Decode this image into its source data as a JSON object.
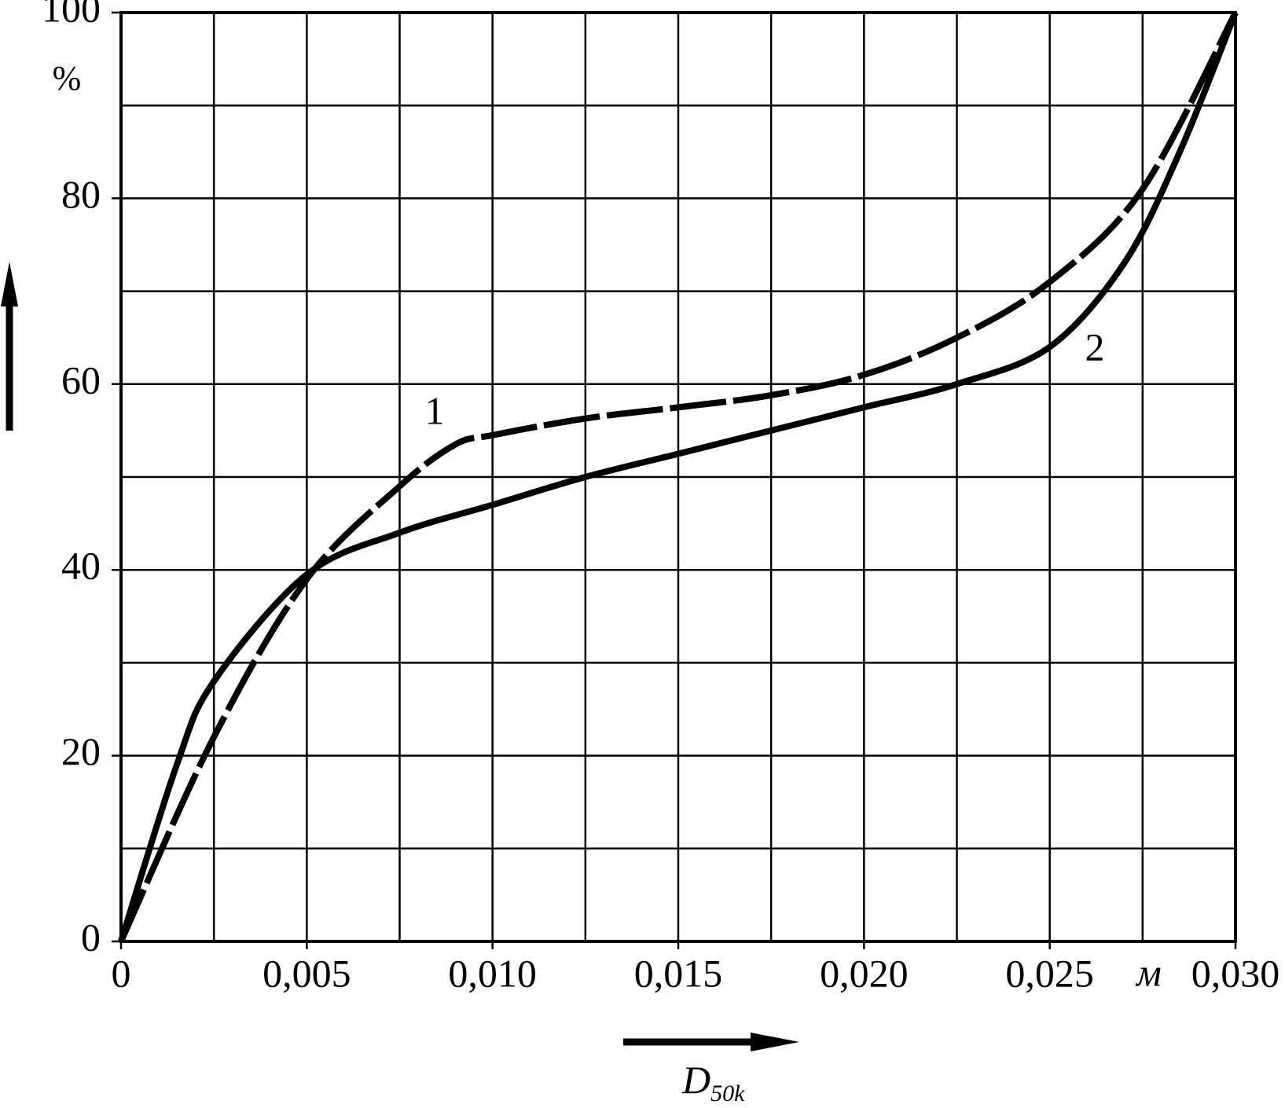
{
  "chart_data": {
    "type": "line",
    "x_label": "D",
    "x_label_subscript": "50k",
    "x_unit": "м",
    "y_unit": "%",
    "xlim": [
      0,
      0.03
    ],
    "ylim": [
      0,
      100
    ],
    "xticks": [
      0,
      {
        "value": 0.005,
        "label": "0,005"
      },
      {
        "value": 0.01,
        "label": "0,010"
      },
      {
        "value": 0.015,
        "label": "0,015"
      },
      {
        "value": 0.02,
        "label": "0,020"
      },
      {
        "value": 0.025,
        "label": "0,025"
      },
      {
        "value": 0.03,
        "label": "0,030"
      }
    ],
    "minor_xticks": [
      0.0025,
      0.0075,
      0.0125,
      0.0175,
      0.0225,
      0.0275
    ],
    "yticks": [
      0,
      20,
      40,
      60,
      80,
      100
    ],
    "minor_yticks": [
      10,
      30,
      50,
      70,
      90
    ],
    "grid": true,
    "series": [
      {
        "name": "1",
        "color": "#000000",
        "style": "dashed",
        "x": [
          0,
          0.0025,
          0.005,
          0.0075,
          0.009,
          0.01,
          0.0125,
          0.015,
          0.0175,
          0.02,
          0.0225,
          0.025,
          0.0275,
          0.03
        ],
        "values": [
          0,
          22,
          39,
          49,
          53.5,
          54.5,
          56.3,
          57.5,
          58.8,
          61,
          65,
          71,
          81,
          100
        ]
      },
      {
        "name": "2",
        "color": "#000000",
        "style": "solid",
        "x": [
          0,
          0.0015,
          0.0025,
          0.005,
          0.0075,
          0.01,
          0.0125,
          0.015,
          0.0175,
          0.02,
          0.0225,
          0.025,
          0.027,
          0.0285,
          0.03
        ],
        "values": [
          0,
          19,
          28,
          39.5,
          44,
          47,
          50,
          52.5,
          55,
          57.5,
          60,
          64,
          73,
          85,
          100
        ]
      }
    ],
    "series_label_positions": null
  }
}
